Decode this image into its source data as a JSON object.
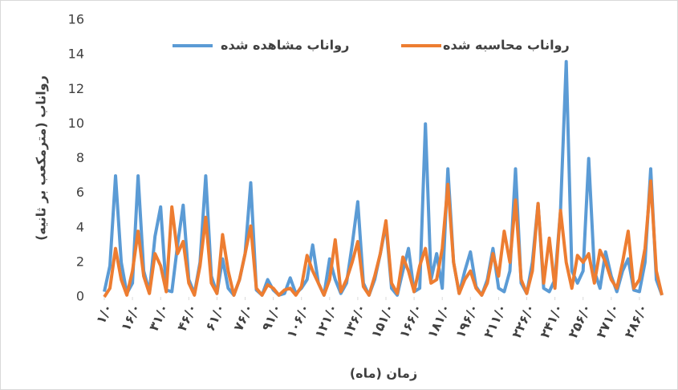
{
  "chart_data": {
    "type": "line",
    "y_label": "رواناب (مترمکعب بر ثانیه)",
    "x_label": "زمان (ماه)",
    "x": [
      1,
      4,
      7,
      10,
      13,
      16,
      19,
      22,
      25,
      28,
      31,
      34,
      37,
      40,
      43,
      46,
      49,
      52,
      55,
      58,
      61,
      64,
      67,
      70,
      73,
      76,
      79,
      82,
      85,
      88,
      91,
      94,
      97,
      100,
      103,
      106,
      109,
      112,
      115,
      118,
      121,
      124,
      127,
      130,
      133,
      136,
      139,
      142,
      145,
      148,
      151,
      154,
      157,
      160,
      163,
      166,
      169,
      172,
      175,
      178,
      181,
      184,
      187,
      190,
      193,
      196,
      199,
      202,
      205,
      208,
      211,
      214,
      217,
      220,
      223,
      226,
      229,
      232,
      235,
      238,
      241,
      244,
      247,
      250,
      253,
      256,
      259,
      262,
      265,
      268,
      271,
      274,
      277,
      280,
      283,
      286,
      289,
      292,
      295,
      298
    ],
    "series": [
      {
        "name": "رواناب مشاهده شده",
        "color": "#5b9bd5",
        "values": [
          0.3,
          1.8,
          7.0,
          2.0,
          0.2,
          0.8,
          7.0,
          1.5,
          0.3,
          3.5,
          5.2,
          0.4,
          0.3,
          3.0,
          5.3,
          1.0,
          0.2,
          2.0,
          7.0,
          1.2,
          0.2,
          2.2,
          0.5,
          0.1,
          1.0,
          2.5,
          6.6,
          0.4,
          0.1,
          1.0,
          0.4,
          0.1,
          0.2,
          1.1,
          0.2,
          0.5,
          1.0,
          3.0,
          0.8,
          0.1,
          2.2,
          1.0,
          0.2,
          0.8,
          3.0,
          5.5,
          0.8,
          0.1,
          1.0,
          2.5,
          4.2,
          0.5,
          0.1,
          1.5,
          2.8,
          0.3,
          0.5,
          10.0,
          1.0,
          2.5,
          0.5,
          7.4,
          2.0,
          0.2,
          1.5,
          2.6,
          0.6,
          0.1,
          1.0,
          2.8,
          0.5,
          0.3,
          1.5,
          7.4,
          0.8,
          0.2,
          2.0,
          5.4,
          0.5,
          0.3,
          1.0,
          5.0,
          13.6,
          1.5,
          0.8,
          1.5,
          8.0,
          1.5,
          0.5,
          2.6,
          1.2,
          0.3,
          1.5,
          2.2,
          0.4,
          0.3,
          2.0,
          7.4,
          1.0,
          0.1
        ]
      },
      {
        "name": "رواناب محاسبه شده",
        "color": "#ed7d31",
        "values": [
          0,
          0.5,
          2.8,
          1.0,
          0.1,
          1.5,
          3.8,
          1.2,
          0.2,
          2.5,
          1.8,
          0.3,
          5.2,
          2.5,
          3.2,
          0.8,
          0.1,
          1.8,
          4.6,
          0.8,
          0.2,
          3.6,
          1.5,
          0.1,
          1.0,
          2.5,
          4.1,
          0.5,
          0.1,
          0.7,
          0.5,
          0.1,
          0.4,
          0.5,
          0.1,
          0.6,
          2.4,
          1.5,
          0.8,
          0.1,
          1.0,
          3.3,
          0.3,
          1.0,
          2.0,
          3.2,
          0.6,
          0.1,
          1.2,
          2.5,
          4.4,
          0.8,
          0.2,
          2.3,
          1.5,
          0.3,
          1.8,
          2.8,
          0.8,
          1.0,
          2.8,
          6.5,
          2.0,
          0.2,
          1.0,
          1.5,
          0.5,
          0.1,
          0.8,
          2.5,
          1.2,
          3.8,
          2.0,
          5.6,
          1.0,
          0.2,
          1.5,
          5.4,
          0.8,
          3.4,
          0.5,
          5.0,
          2.0,
          0.5,
          2.4,
          2.0,
          2.5,
          0.8,
          2.7,
          2.0,
          1.0,
          0.5,
          2.0,
          3.8,
          0.5,
          1.0,
          2.8,
          6.7,
          1.5,
          0.1
        ]
      }
    ],
    "xlim": [
      1,
      298
    ],
    "xticks": [
      {
        "value": 1,
        "label": "۱/۰"
      },
      {
        "value": 16,
        "label": "۱۶/۰"
      },
      {
        "value": 31,
        "label": "۳۱/۰"
      },
      {
        "value": 46,
        "label": "۴۶/۰"
      },
      {
        "value": 61,
        "label": "۶۱/۰"
      },
      {
        "value": 76,
        "label": "۷۶/۰"
      },
      {
        "value": 91,
        "label": "۹۱/۰"
      },
      {
        "value": 106,
        "label": "۱۰۶/۰"
      },
      {
        "value": 121,
        "label": "۱۲۱/۰"
      },
      {
        "value": 136,
        "label": "۱۳۶/۰"
      },
      {
        "value": 151,
        "label": "۱۵۱/۰"
      },
      {
        "value": 166,
        "label": "۱۶۶/۰"
      },
      {
        "value": 181,
        "label": "۱۸۱/۰"
      },
      {
        "value": 196,
        "label": "۱۹۶/۰"
      },
      {
        "value": 211,
        "label": "۲۱۱/۰"
      },
      {
        "value": 226,
        "label": "۲۲۶/۰"
      },
      {
        "value": 241,
        "label": "۲۴۱/۰"
      },
      {
        "value": 256,
        "label": "۲۵۶/۰"
      },
      {
        "value": 271,
        "label": "۲۷۱/۰"
      },
      {
        "value": 286,
        "label": "۲۸۶/۰"
      }
    ],
    "ylim": [
      0,
      16
    ],
    "yticks": [
      0,
      2,
      4,
      6,
      8,
      10,
      12,
      14,
      16
    ],
    "grid": false,
    "legend": "top"
  }
}
